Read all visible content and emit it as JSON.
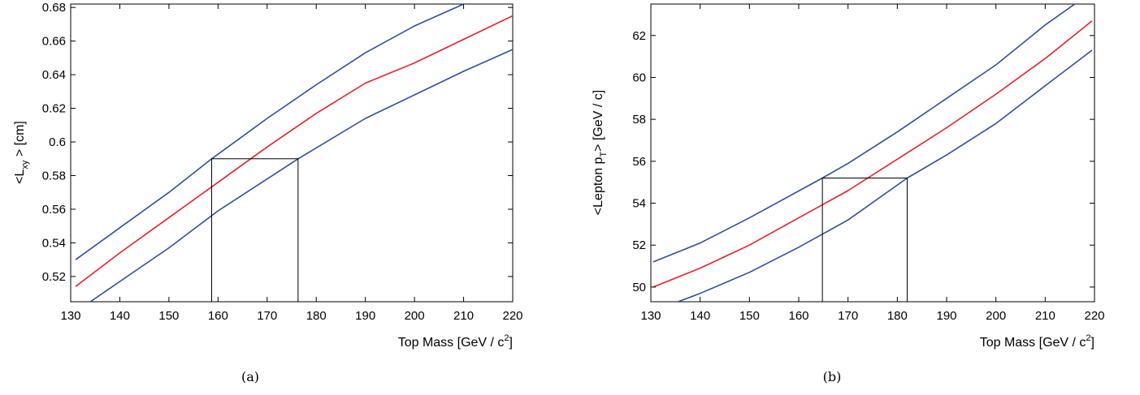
{
  "chart_data": [
    {
      "type": "line",
      "caption": "(a)",
      "xlabel": "Top Mass [GeV / c²]",
      "ylabel": "<Lxy > [cm]",
      "xlim": [
        130,
        220
      ],
      "ylim": [
        0.505,
        0.682
      ],
      "x_ticks": [
        130,
        140,
        150,
        160,
        170,
        180,
        190,
        200,
        210,
        220
      ],
      "y_ticks": [
        0.52,
        0.54,
        0.56,
        0.58,
        0.6,
        0.62,
        0.64,
        0.66,
        0.68
      ],
      "y_tick_labels": [
        "0.52",
        "0.54",
        "0.56",
        "0.58",
        "0.6",
        "0.62",
        "0.64",
        "0.66",
        "0.68"
      ],
      "colors": {
        "central": "#e8202a",
        "band": "#2e4ea0",
        "box": "#000000"
      },
      "series": [
        {
          "role": "upper",
          "x": [
            131,
            140,
            150,
            158.7,
            170,
            180,
            190,
            200,
            210,
            213
          ],
          "y": [
            0.53,
            0.549,
            0.57,
            0.59,
            0.614,
            0.634,
            0.653,
            0.669,
            0.682,
            0.686
          ]
        },
        {
          "role": "central",
          "x": [
            131,
            140,
            150,
            160,
            170,
            180,
            190,
            200,
            210,
            220
          ],
          "y": [
            0.514,
            0.534,
            0.555,
            0.576,
            0.597,
            0.617,
            0.635,
            0.647,
            0.661,
            0.675
          ]
        },
        {
          "role": "lower",
          "x": [
            134,
            140,
            150,
            160,
            176.3,
            190,
            200,
            210,
            220
          ],
          "y": [
            0.505,
            0.517,
            0.537,
            0.559,
            0.59,
            0.614,
            0.628,
            0.642,
            0.655
          ]
        }
      ],
      "box": {
        "x1": 158.7,
        "x2": 176.3,
        "y": 0.59
      }
    },
    {
      "type": "line",
      "caption": "(b)",
      "xlabel": "Top Mass [GeV / c²]",
      "ylabel": "<Lepton pT> [GeV / c]",
      "xlim": [
        130,
        220
      ],
      "ylim": [
        49.3,
        63.5
      ],
      "x_ticks": [
        130,
        140,
        150,
        160,
        170,
        180,
        190,
        200,
        210,
        220
      ],
      "y_ticks": [
        50,
        52,
        54,
        56,
        58,
        60,
        62
      ],
      "y_tick_labels": [
        "50",
        "52",
        "54",
        "56",
        "58",
        "60",
        "62"
      ],
      "colors": {
        "central": "#e8202a",
        "band": "#2e4ea0",
        "box": "#000000"
      },
      "series": [
        {
          "role": "upper",
          "x": [
            130.5,
            140,
            150,
            164.8,
            170,
            180,
            190,
            200,
            210,
            216
          ],
          "y": [
            51.2,
            52.1,
            53.3,
            55.2,
            55.9,
            57.4,
            59.0,
            60.6,
            62.5,
            63.5
          ]
        },
        {
          "role": "central",
          "x": [
            130.5,
            140,
            150,
            160,
            170,
            180,
            190,
            200,
            210,
            219.5
          ],
          "y": [
            50.0,
            50.9,
            52.0,
            53.3,
            54.6,
            56.1,
            57.6,
            59.2,
            60.9,
            62.7
          ]
        },
        {
          "role": "lower",
          "x": [
            135.5,
            140,
            150,
            160,
            170,
            182,
            190,
            200,
            210,
            219.5
          ],
          "y": [
            49.3,
            49.7,
            50.7,
            51.9,
            53.2,
            55.2,
            56.3,
            57.8,
            59.6,
            61.3
          ]
        }
      ],
      "box": {
        "x1": 164.8,
        "x2": 182.0,
        "y": 55.2
      }
    }
  ]
}
